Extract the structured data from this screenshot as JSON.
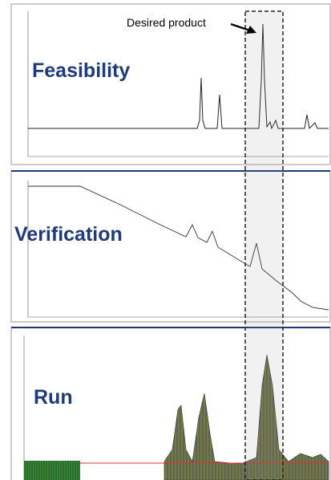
{
  "annotation": "Desired product",
  "panels": [
    {
      "label": "Feasibility"
    },
    {
      "label": "Verification"
    },
    {
      "label": "Run"
    }
  ]
}
